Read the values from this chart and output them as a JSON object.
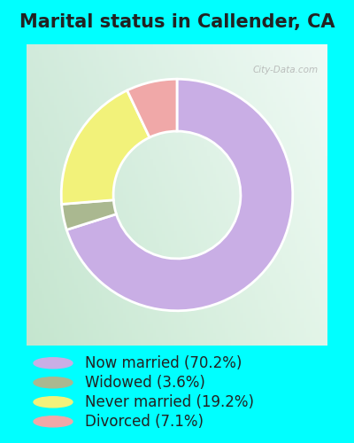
{
  "title": "Marital status in Callender, CA",
  "slices": [
    70.2,
    3.6,
    19.2,
    7.1
  ],
  "labels": [
    "Now married (70.2%)",
    "Widowed (3.6%)",
    "Never married (19.2%)",
    "Divorced (7.1%)"
  ],
  "colors": [
    "#c9aee5",
    "#aab890",
    "#f2f27a",
    "#f0a8a8"
  ],
  "outer_background": "#00ffff",
  "chart_bg": "#d4ecdE",
  "title_fontsize": 15,
  "legend_fontsize": 12,
  "watermark": "City-Data.com",
  "donut_width": 0.45,
  "start_angle": 90,
  "title_color": "#222222"
}
